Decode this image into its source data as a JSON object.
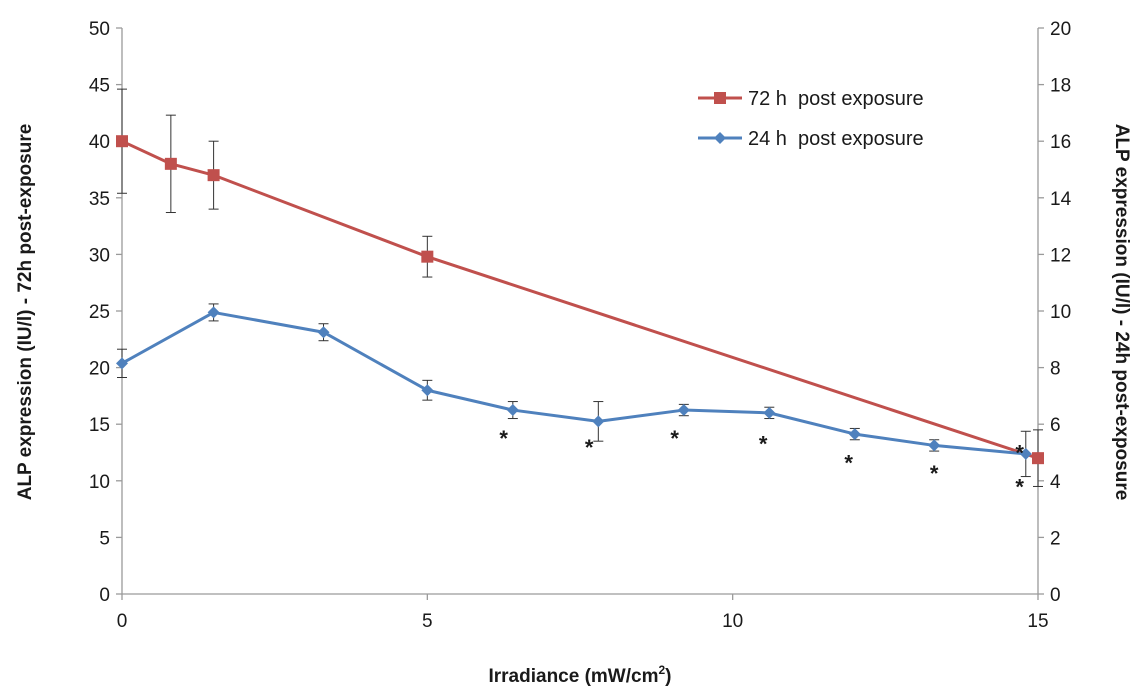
{
  "chart_data": {
    "type": "line",
    "x_axis": {
      "label": "Irradiance (mW/cm",
      "label_sup": "2",
      "label_end": ")",
      "range": [
        0,
        15
      ],
      "ticks": [
        "0",
        "5",
        "10",
        "15"
      ]
    },
    "y_axis_left": {
      "label": "ALP expression (IU/l) - 72h post-exposure",
      "range": [
        0,
        50
      ],
      "ticks": [
        "0",
        "5",
        "10",
        "15",
        "20",
        "25",
        "30",
        "35",
        "40",
        "45",
        "50"
      ]
    },
    "y_axis_right": {
      "label": "ALP expression (IU/l) - 24h post-exposure",
      "range": [
        0,
        20
      ],
      "ticks": [
        "0",
        "2",
        "4",
        "6",
        "8",
        "10",
        "12",
        "14",
        "16",
        "18",
        "20"
      ]
    },
    "grid": false,
    "legend_position": "top-right",
    "series": [
      {
        "name": "72 h  post exposure",
        "axis": "left",
        "color": "#c0504d",
        "marker": "square",
        "points": [
          {
            "x": 0,
            "y": 40,
            "err": 4.6
          },
          {
            "x": 0.8,
            "y": 38,
            "err": 4.3
          },
          {
            "x": 1.5,
            "y": 37,
            "err": 3.0
          },
          {
            "x": 5,
            "y": 29.8,
            "err": 1.8
          },
          {
            "x": 15,
            "y": 12,
            "err": 2.5
          }
        ]
      },
      {
        "name": "24 h  post exposure",
        "axis": "right",
        "color": "#4f81bd",
        "marker": "diamond",
        "points": [
          {
            "x": 0,
            "y": 8.15,
            "err": 0.5
          },
          {
            "x": 1.5,
            "y": 9.95,
            "err": 0.3
          },
          {
            "x": 3.3,
            "y": 9.25,
            "err": 0.3
          },
          {
            "x": 5,
            "y": 7.2,
            "err": 0.35
          },
          {
            "x": 6.4,
            "y": 6.5,
            "err": 0.3
          },
          {
            "x": 7.8,
            "y": 6.1,
            "err": 0.7
          },
          {
            "x": 9.2,
            "y": 6.5,
            "err": 0.2
          },
          {
            "x": 10.6,
            "y": 6.4,
            "err": 0.2
          },
          {
            "x": 12,
            "y": 5.65,
            "err": 0.2
          },
          {
            "x": 13.3,
            "y": 5.25,
            "err": 0.2
          },
          {
            "x": 14.8,
            "y": 4.95,
            "err": 0.8
          }
        ]
      }
    ],
    "annotations": [
      {
        "text": "*",
        "x": 6.25,
        "y_left": 13.8
      },
      {
        "text": "*",
        "x": 7.65,
        "y_left": 13.0
      },
      {
        "text": "*",
        "x": 9.05,
        "y_left": 13.8
      },
      {
        "text": "*",
        "x": 10.5,
        "y_left": 13.3
      },
      {
        "text": "*",
        "x": 11.9,
        "y_left": 11.6
      },
      {
        "text": "*",
        "x": 13.3,
        "y_left": 10.7
      },
      {
        "text": "*",
        "x": 14.7,
        "y_left": 12.5
      },
      {
        "text": "*",
        "x": 14.7,
        "y_left": 9.5
      }
    ]
  }
}
